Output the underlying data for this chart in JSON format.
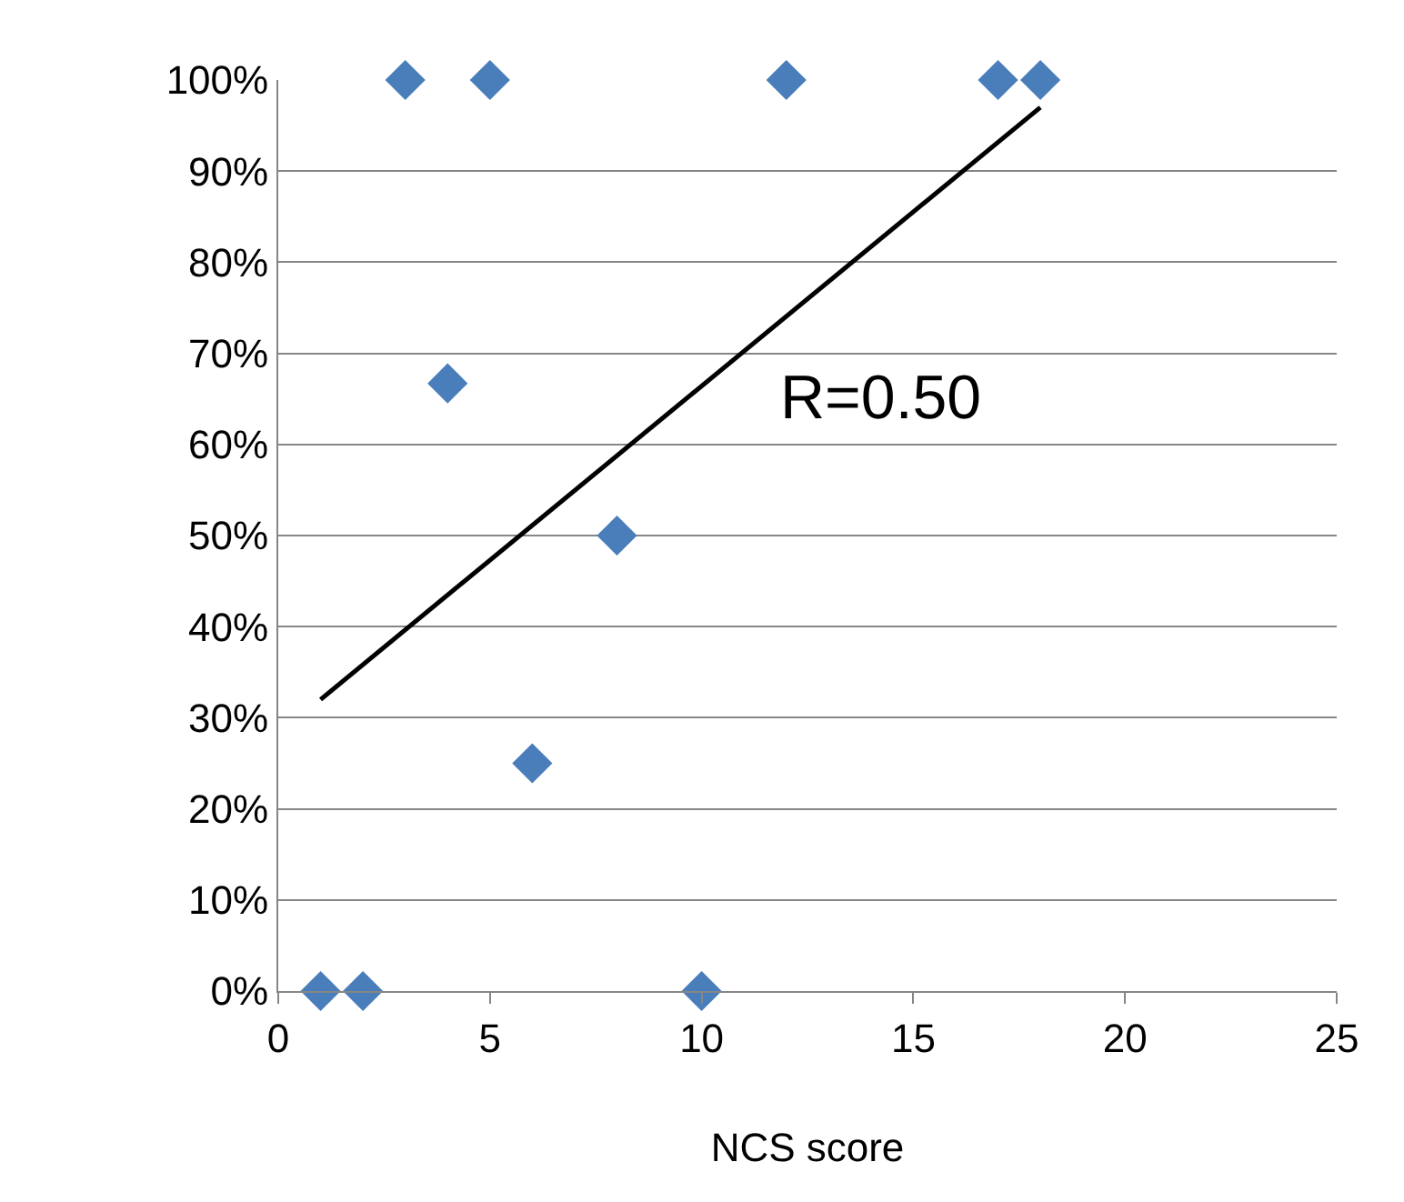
{
  "chart_data": {
    "type": "scatter",
    "xlabel": "NCS score",
    "series": [
      {
        "color": "#4a7ebb",
        "marker": "diamond",
        "x": [
          1,
          2,
          3,
          4,
          5,
          6,
          8,
          10,
          12,
          17,
          18
        ],
        "values": [
          0,
          0,
          100,
          66.7,
          100,
          25,
          50,
          0,
          100,
          100,
          100
        ]
      },
      {
        "type": "line",
        "color": "#000000",
        "marker": "none",
        "x": [
          1,
          18
        ],
        "values": [
          32,
          97
        ]
      }
    ],
    "annotations": [
      "R=0.50"
    ],
    "xlim": [
      0,
      25
    ],
    "xticks": [
      0,
      5,
      10,
      15,
      20,
      25
    ],
    "ylim": [
      0,
      100
    ],
    "yticks": [
      {
        "value": 0,
        "label": "0%"
      },
      {
        "value": 10,
        "label": "10%"
      },
      {
        "value": 20,
        "label": "20%"
      },
      {
        "value": 30,
        "label": "30%"
      },
      {
        "value": 40,
        "label": "40%"
      },
      {
        "value": 50,
        "label": "50%"
      },
      {
        "value": 60,
        "label": "60%"
      },
      {
        "value": 70,
        "label": "70%"
      },
      {
        "value": 80,
        "label": "80%"
      },
      {
        "value": 90,
        "label": "90%"
      },
      {
        "value": 100,
        "label": "100%"
      }
    ],
    "grid": "y"
  }
}
